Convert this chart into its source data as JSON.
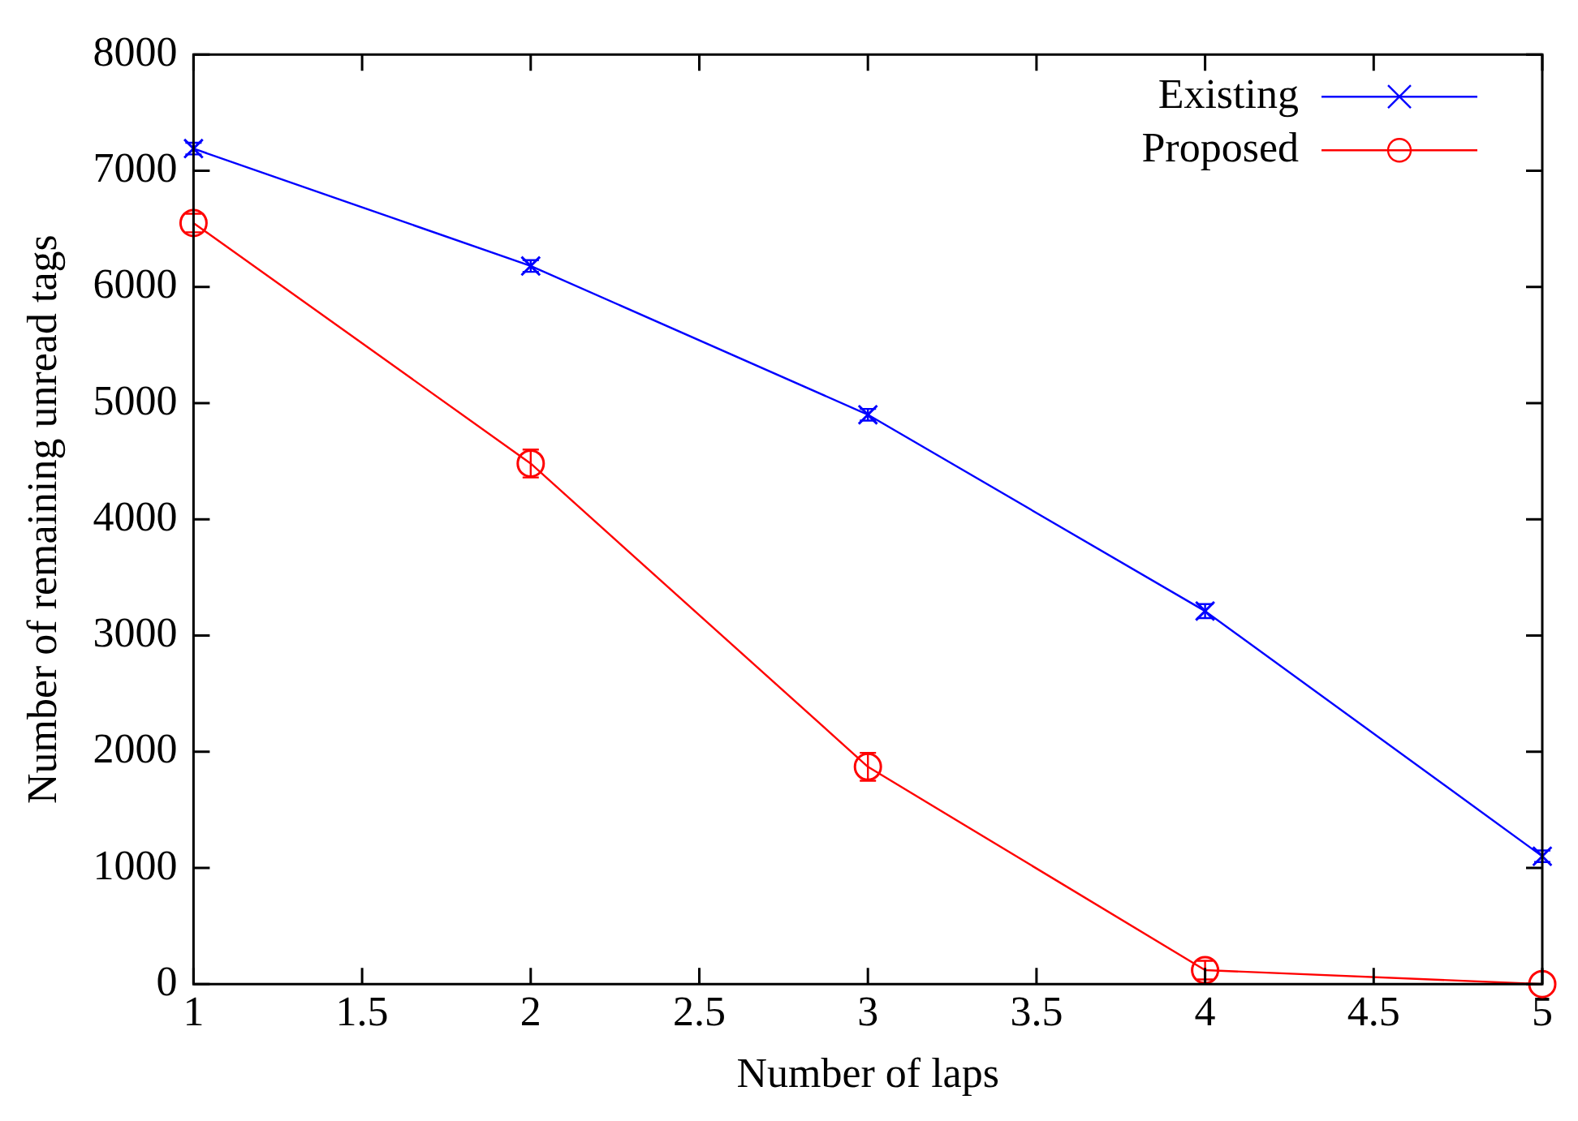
{
  "chart_data": {
    "type": "line",
    "xlabel": "Number of laps",
    "ylabel": "Number of remaining unread tags",
    "x": [
      1,
      2,
      3,
      4,
      5
    ],
    "series": [
      {
        "name": "Existing",
        "color": "#0000ff",
        "marker": "cross",
        "values": [
          7190,
          6180,
          4900,
          3210,
          1100
        ],
        "errors": [
          50,
          50,
          50,
          60,
          50
        ]
      },
      {
        "name": "Proposed",
        "color": "#ff0000",
        "marker": "circle",
        "values": [
          6550,
          4480,
          1870,
          120,
          0
        ],
        "errors": [
          80,
          120,
          120,
          80,
          null
        ]
      }
    ],
    "xlim": [
      1,
      5
    ],
    "xticks": [
      1,
      1.5,
      2,
      2.5,
      3,
      3.5,
      4,
      4.5,
      5
    ],
    "ylim": [
      0,
      8000
    ],
    "yticks": [
      0,
      1000,
      2000,
      3000,
      4000,
      5000,
      6000,
      7000,
      8000
    ],
    "grid": false,
    "legend": "top right",
    "line_style": "solid"
  }
}
